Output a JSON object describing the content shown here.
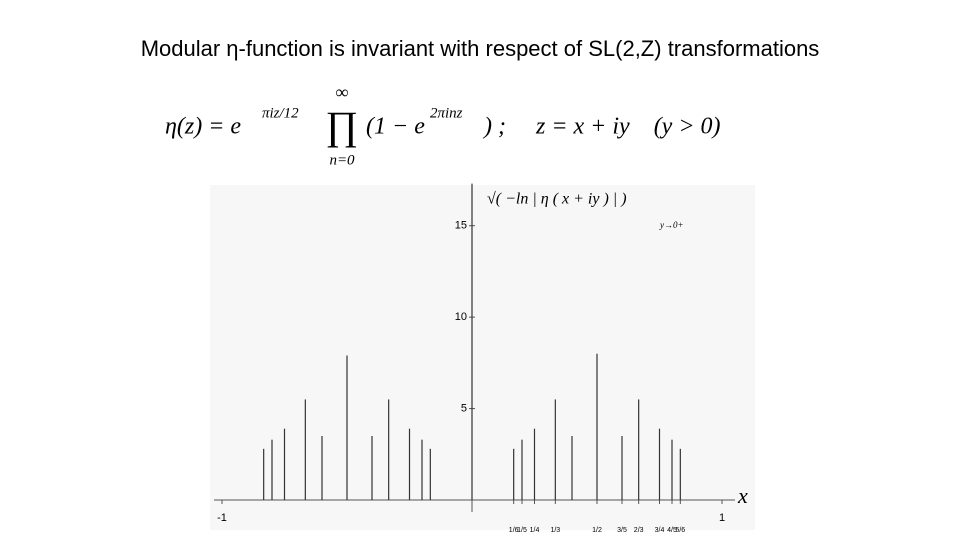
{
  "header": {
    "title": "Modular η-function is invariant with respect of SL(2,Z) transformations"
  },
  "formula": {
    "lhs": "η(z) = e",
    "exp1": "πiz/12",
    "prod": "∏",
    "upper": "∞",
    "lower": "n=0",
    "factor": "(1 − e",
    "exp2": "2πinz",
    "rest": ") ;     z = x + iy    (y > 0)"
  },
  "chart_data": {
    "type": "stem",
    "annotation": "√( −ln | η ( x + iy ) | )",
    "annotation_sub": "y→0+",
    "xlabel": "x",
    "x": [
      0,
      -0.5,
      0.5,
      -0.3333,
      0.3333,
      -0.6667,
      0.6667,
      -0.25,
      0.25,
      -0.75,
      0.75,
      -0.2,
      0.2,
      -0.8,
      0.8,
      -0.4,
      0.4,
      -0.6,
      0.6,
      -0.1667,
      0.1667,
      -0.8333,
      0.8333
    ],
    "values": [
      17.3,
      7.9,
      8.0,
      5.5,
      5.5,
      5.5,
      5.5,
      3.9,
      3.9,
      3.9,
      3.9,
      3.3,
      3.3,
      3.3,
      3.3,
      3.5,
      3.5,
      3.5,
      3.5,
      2.8,
      2.8,
      2.8,
      2.8
    ],
    "color": "#333333",
    "xlim": [
      -1,
      1
    ],
    "ylim": [
      0,
      17.5
    ],
    "yticks": [
      5,
      10,
      15
    ],
    "xticks": [
      -1,
      1,
      {
        "value": 0.1667,
        "label": "1/6"
      },
      {
        "value": 0.2,
        "label": "1/5"
      },
      {
        "value": 0.25,
        "label": "1/4"
      },
      {
        "value": 0.3333,
        "label": "1/3"
      },
      {
        "value": 0.5,
        "label": "1/2"
      },
      {
        "value": 0.6,
        "label": "3/5"
      },
      {
        "value": 0.6667,
        "label": "2/3"
      },
      {
        "value": 0.75,
        "label": "3/4"
      },
      {
        "value": 0.8,
        "label": "4/5"
      },
      {
        "value": 0.8333,
        "label": "5/6"
      }
    ]
  }
}
